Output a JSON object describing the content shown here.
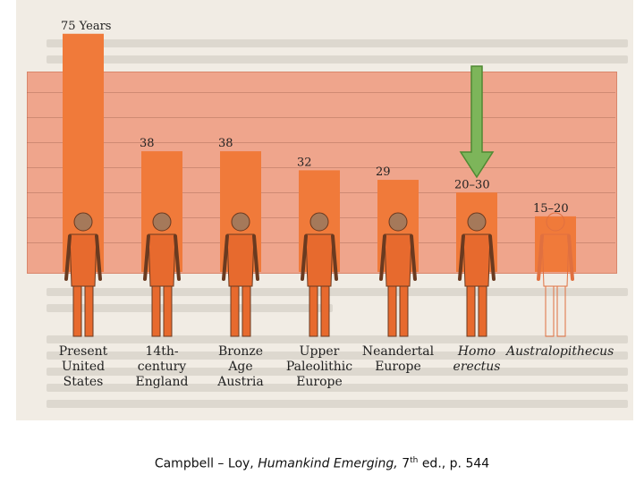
{
  "chart_data": {
    "type": "bar",
    "categories": [
      {
        "line1": "Present",
        "line2": "United",
        "line3": "States",
        "italic": false
      },
      {
        "line1": "14th-",
        "line2": "century",
        "line3": "England",
        "italic": false
      },
      {
        "line1": "Bronze",
        "line2": "Age",
        "line3": "Austria",
        "italic": false
      },
      {
        "line1": "Upper",
        "line2": "Paleolithic",
        "line3": "Europe",
        "italic": false
      },
      {
        "line1": "Neandertal",
        "line2": "Europe",
        "line3": "",
        "italic": false
      },
      {
        "line1": "Homo",
        "line2": "erectus",
        "line3": "",
        "italic": true
      },
      {
        "line1": "Australopithecus",
        "line2": "",
        "line3": "",
        "italic": true
      }
    ],
    "values": [
      75,
      38,
      38,
      32,
      29,
      25,
      17.5
    ],
    "value_labels": [
      "75 Years",
      "38",
      "38",
      "32",
      "29",
      "20–30",
      "15–20"
    ],
    "highlight_index": 5,
    "ylim": [
      0,
      80
    ],
    "grid": true,
    "colors": {
      "background": "#efa58c",
      "bar": "#f07a3a",
      "arrow": "#7db55a",
      "arrow_stroke": "#4f8a33"
    }
  },
  "caption": {
    "authors": "Campbell – Loy,",
    "book": "Humankind Emerging,",
    "edition_num": "7",
    "edition_sup": "th",
    "edition_rest": "ed., p. 544"
  }
}
